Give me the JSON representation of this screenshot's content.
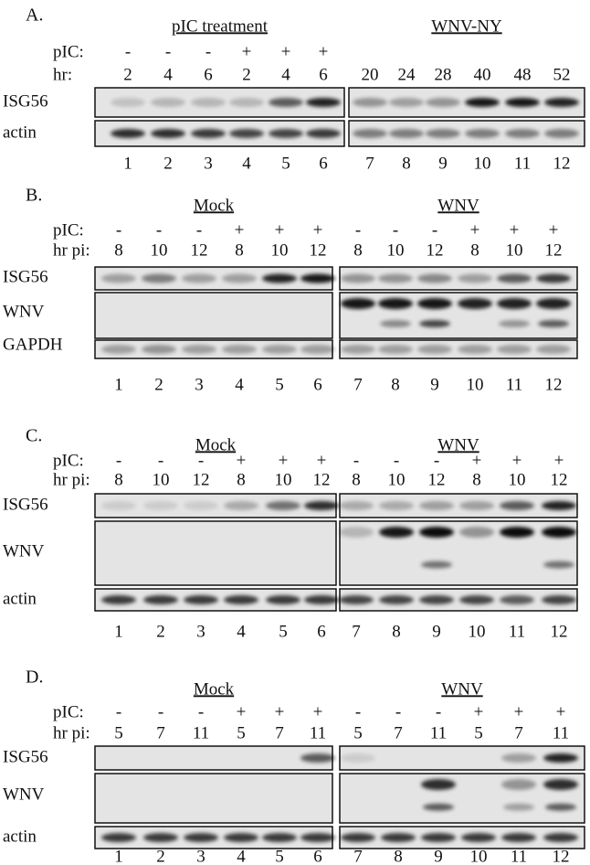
{
  "panels": [
    {
      "label": "A.",
      "row_labels": [
        "pIC:",
        "hr:"
      ],
      "groups": [
        {
          "title": "pIC treatment",
          "pic": [
            "-",
            "-",
            "-",
            "+",
            "+",
            "+"
          ],
          "hr": [
            "2",
            "4",
            "6",
            "2",
            "4",
            "6"
          ],
          "lanes": [
            "1",
            "2",
            "3",
            "4",
            "5",
            "6"
          ]
        },
        {
          "title": "WNV-NY",
          "hr": [
            "20",
            "24",
            "28",
            "40",
            "48",
            "52"
          ],
          "lanes": [
            "7",
            "8",
            "9",
            "10",
            "11",
            "12"
          ]
        }
      ],
      "blots": [
        "ISG56",
        "actin"
      ]
    },
    {
      "label": "B.",
      "row_labels": [
        "pIC:",
        "hr pi:"
      ],
      "groups": [
        {
          "title": "Mock",
          "pic": [
            "-",
            "-",
            "-",
            "+",
            "+",
            "+"
          ],
          "hr": [
            "8",
            "10",
            "12",
            "8",
            "10",
            "12"
          ],
          "lanes": [
            "1",
            "2",
            "3",
            "4",
            "5",
            "6"
          ]
        },
        {
          "title": "WNV",
          "pic": [
            "-",
            "-",
            "-",
            "+",
            "+",
            "+"
          ],
          "hr": [
            "8",
            "10",
            "12",
            "8",
            "10",
            "12"
          ],
          "lanes": [
            "7",
            "8",
            "9",
            "10",
            "11",
            "12"
          ]
        }
      ],
      "blots": [
        "ISG56",
        "WNV",
        "GAPDH"
      ]
    },
    {
      "label": "C.",
      "row_labels": [
        "pIC:",
        "hr pi:"
      ],
      "groups": [
        {
          "title": "Mock",
          "pic": [
            "-",
            "-",
            "-",
            "+",
            "+",
            "+"
          ],
          "hr": [
            "8",
            "10",
            "12",
            "8",
            "10",
            "12"
          ],
          "lanes": [
            "1",
            "2",
            "3",
            "4",
            "5",
            "6"
          ]
        },
        {
          "title": "WNV",
          "pic": [
            "-",
            "-",
            "-",
            "+",
            "+",
            "+"
          ],
          "hr": [
            "8",
            "10",
            "12",
            "8",
            "10",
            "12"
          ],
          "lanes": [
            "7",
            "8",
            "9",
            "10",
            "11",
            "12"
          ]
        }
      ],
      "blots": [
        "ISG56",
        "WNV",
        "actin"
      ]
    },
    {
      "label": "D.",
      "row_labels": [
        "pIC:",
        "hr pi:"
      ],
      "groups": [
        {
          "title": "Mock",
          "pic": [
            "-",
            "-",
            "-",
            "+",
            "+",
            "+"
          ],
          "hr": [
            "5",
            "7",
            "11",
            "5",
            "7",
            "11"
          ],
          "lanes": [
            "1",
            "2",
            "3",
            "4",
            "5",
            "6"
          ]
        },
        {
          "title": "WNV",
          "pic": [
            "-",
            "-",
            "-",
            "+",
            "+",
            "+"
          ],
          "hr": [
            "5",
            "7",
            "11",
            "5",
            "7",
            "11"
          ],
          "lanes": [
            "7",
            "8",
            "9",
            "10",
            "11",
            "12"
          ]
        }
      ],
      "blots": [
        "ISG56",
        "WNV",
        "actin"
      ]
    }
  ]
}
